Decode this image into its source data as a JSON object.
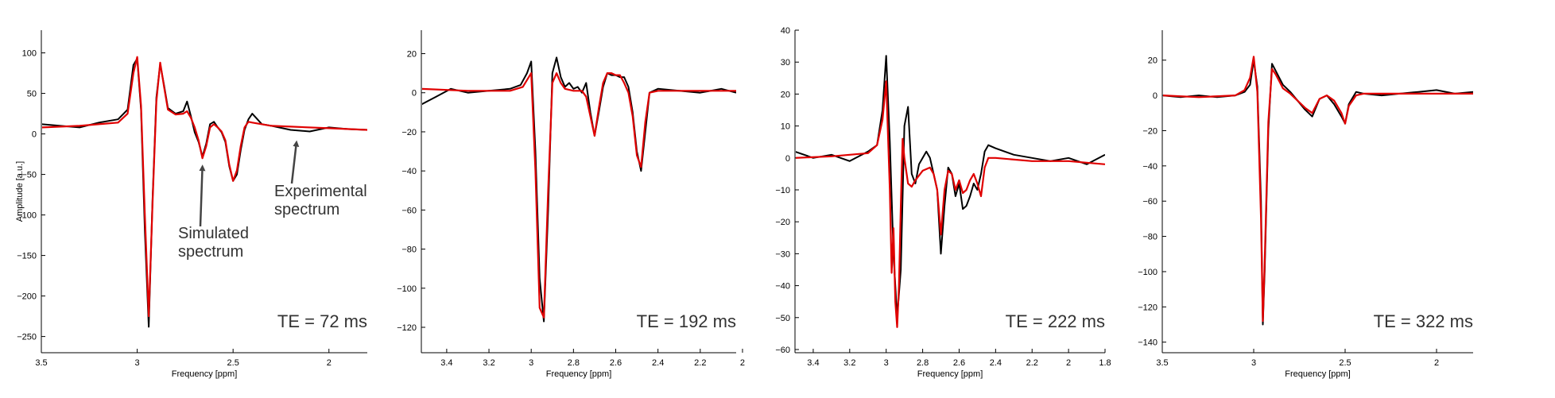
{
  "chart_data": [
    {
      "type": "line",
      "label": "TE = 72 ms",
      "xlabel": "Frequency [ppm]",
      "ylabel": "Amplitude [a.u.]",
      "xlim": [
        3.5,
        1.8
      ],
      "ylim": [
        -270,
        128
      ],
      "xticks": [
        3.5,
        3,
        2.5,
        2
      ],
      "xticklabels": [
        "3.5",
        "3",
        "2.5",
        "2"
      ],
      "yticks": [
        100,
        50,
        0,
        -50,
        -100,
        -150,
        -200,
        -250
      ],
      "yticklabels": [
        "100",
        "50",
        "0",
        "−50",
        "−100",
        "−150",
        "−200",
        "−250"
      ],
      "annotations": [
        {
          "text": [
            "Simulated",
            "spectrum"
          ],
          "point": [
            2.66,
            -30
          ]
        },
        {
          "text": [
            "Experimental",
            "spectrum"
          ],
          "point": [
            2.17,
            0
          ]
        }
      ],
      "series": [
        {
          "name": "Experimental spectrum",
          "x": [
            3.5,
            3.4,
            3.3,
            3.2,
            3.1,
            3.05,
            3.02,
            3.0,
            2.98,
            2.96,
            2.94,
            2.92,
            2.9,
            2.88,
            2.86,
            2.84,
            2.8,
            2.76,
            2.74,
            2.72,
            2.7,
            2.68,
            2.66,
            2.64,
            2.62,
            2.6,
            2.58,
            2.56,
            2.54,
            2.52,
            2.5,
            2.48,
            2.46,
            2.44,
            2.42,
            2.4,
            2.35,
            2.3,
            2.2,
            2.1,
            2.0,
            1.9,
            1.8
          ],
          "y": [
            12,
            10,
            8,
            14,
            18,
            30,
            85,
            93,
            30,
            -120,
            -238,
            -80,
            45,
            86,
            60,
            32,
            25,
            28,
            40,
            22,
            2,
            -10,
            -28,
            -12,
            12,
            15,
            8,
            2,
            -10,
            -40,
            -58,
            -50,
            -20,
            5,
            18,
            25,
            12,
            10,
            5,
            3,
            8,
            6,
            5
          ]
        },
        {
          "name": "Simulated spectrum",
          "x": [
            3.5,
            3.3,
            3.1,
            3.05,
            3.02,
            3.0,
            2.98,
            2.96,
            2.94,
            2.92,
            2.9,
            2.88,
            2.86,
            2.84,
            2.8,
            2.76,
            2.74,
            2.72,
            2.7,
            2.68,
            2.66,
            2.64,
            2.62,
            2.6,
            2.58,
            2.56,
            2.54,
            2.52,
            2.5,
            2.48,
            2.46,
            2.44,
            2.42,
            2.4,
            2.3,
            2.2,
            2.0,
            1.8
          ],
          "y": [
            8,
            10,
            14,
            25,
            75,
            95,
            35,
            -100,
            -225,
            -85,
            40,
            88,
            58,
            30,
            24,
            25,
            28,
            20,
            8,
            -8,
            -30,
            -15,
            8,
            12,
            8,
            3,
            -8,
            -38,
            -58,
            -45,
            -15,
            8,
            15,
            14,
            10,
            9,
            7,
            5
          ]
        }
      ]
    },
    {
      "type": "line",
      "label": "TE = 192 ms",
      "xlabel": "Frequency [ppm]",
      "ylabel": "",
      "xlim": [
        3.52,
        2.03
      ],
      "ylim": [
        -133,
        32
      ],
      "xticks": [
        3.4,
        3.2,
        3.0,
        2.8,
        2.6,
        2.4,
        2.2,
        2.0
      ],
      "xticklabels": [
        "3.4",
        "3.2",
        "3",
        "2.8",
        "2.6",
        "2.4",
        "2.2",
        "2"
      ],
      "yticks": [
        20,
        0,
        -20,
        -40,
        -60,
        -80,
        -100,
        -120
      ],
      "yticklabels": [
        "20",
        "0",
        "−20",
        "−40",
        "−60",
        "−80",
        "−100",
        "−120"
      ],
      "series": [
        {
          "name": "Experimental spectrum",
          "x": [
            3.52,
            3.45,
            3.38,
            3.3,
            3.2,
            3.1,
            3.05,
            3.02,
            3.0,
            2.98,
            2.96,
            2.94,
            2.92,
            2.9,
            2.88,
            2.86,
            2.84,
            2.82,
            2.8,
            2.78,
            2.76,
            2.74,
            2.72,
            2.7,
            2.68,
            2.66,
            2.64,
            2.62,
            2.6,
            2.58,
            2.56,
            2.54,
            2.52,
            2.5,
            2.48,
            2.46,
            2.44,
            2.4,
            2.3,
            2.2,
            2.1,
            2.03
          ],
          "y": [
            -6,
            -2,
            2,
            0,
            1,
            2,
            4,
            10,
            16,
            -30,
            -95,
            -117,
            -60,
            10,
            18,
            8,
            3,
            5,
            2,
            3,
            0,
            5,
            -10,
            -22,
            -10,
            3,
            10,
            9,
            9,
            8,
            8,
            3,
            -10,
            -30,
            -40,
            -20,
            0,
            2,
            1,
            0,
            2,
            0
          ]
        },
        {
          "name": "Simulated spectrum",
          "x": [
            3.52,
            3.3,
            3.1,
            3.04,
            3.0,
            2.98,
            2.96,
            2.94,
            2.92,
            2.9,
            2.88,
            2.86,
            2.84,
            2.8,
            2.76,
            2.74,
            2.72,
            2.7,
            2.68,
            2.66,
            2.64,
            2.62,
            2.6,
            2.58,
            2.56,
            2.54,
            2.52,
            2.5,
            2.48,
            2.46,
            2.44,
            2.4,
            2.2,
            2.03
          ],
          "y": [
            2,
            1,
            1,
            3,
            10,
            -40,
            -110,
            -115,
            -50,
            5,
            10,
            5,
            2,
            1,
            1,
            -2,
            -12,
            -22,
            -8,
            5,
            10,
            10,
            9,
            9,
            5,
            0,
            -12,
            -32,
            -38,
            -15,
            0,
            1,
            1,
            1
          ]
        }
      ]
    },
    {
      "type": "line",
      "label": "TE = 222 ms",
      "xlabel": "Frequency [ppm]",
      "ylabel": "",
      "xlim": [
        3.5,
        1.8
      ],
      "ylim": [
        -61,
        40
      ],
      "xticks": [
        3.4,
        3.2,
        3.0,
        2.8,
        2.6,
        2.4,
        2.2,
        2.0,
        1.8
      ],
      "xticklabels": [
        "3.4",
        "3.2",
        "3",
        "2.8",
        "2.6",
        "2.4",
        "2.2",
        "2",
        "1.8"
      ],
      "yticks": [
        40,
        30,
        20,
        10,
        0,
        -10,
        -20,
        -30,
        -40,
        -50,
        -60
      ],
      "yticklabels": [
        "40",
        "30",
        "20",
        "10",
        "0",
        "−10",
        "−20",
        "−30",
        "−40",
        "−50",
        "−60"
      ],
      "series": [
        {
          "name": "Experimental spectrum",
          "x": [
            3.5,
            3.4,
            3.3,
            3.2,
            3.1,
            3.05,
            3.02,
            3.0,
            2.98,
            2.96,
            2.94,
            2.92,
            2.9,
            2.88,
            2.86,
            2.84,
            2.82,
            2.8,
            2.78,
            2.76,
            2.74,
            2.72,
            2.7,
            2.68,
            2.66,
            2.64,
            2.62,
            2.6,
            2.58,
            2.56,
            2.54,
            2.52,
            2.5,
            2.48,
            2.46,
            2.44,
            2.4,
            2.3,
            2.2,
            2.1,
            2.0,
            1.9,
            1.8
          ],
          "y": [
            2,
            0,
            1,
            -1,
            2,
            4,
            15,
            32,
            5,
            -30,
            -50,
            -35,
            10,
            16,
            -5,
            -8,
            -2,
            0,
            2,
            0,
            -5,
            -10,
            -30,
            -15,
            -3,
            -5,
            -12,
            -8,
            -16,
            -15,
            -12,
            -8,
            -10,
            -5,
            2,
            4,
            3,
            1,
            0,
            -1,
            0,
            -2,
            1
          ]
        },
        {
          "name": "Simulated spectrum",
          "x": [
            3.5,
            3.3,
            3.1,
            3.05,
            3.02,
            3.0,
            2.98,
            2.97,
            2.96,
            2.95,
            2.94,
            2.93,
            2.92,
            2.91,
            2.9,
            2.88,
            2.86,
            2.84,
            2.8,
            2.76,
            2.74,
            2.72,
            2.7,
            2.68,
            2.66,
            2.64,
            2.62,
            2.6,
            2.58,
            2.56,
            2.54,
            2.52,
            2.5,
            2.48,
            2.46,
            2.44,
            2.4,
            2.2,
            2.0,
            1.8
          ],
          "y": [
            0,
            0.5,
            1.5,
            4,
            12,
            24,
            -10,
            -36,
            -22,
            -45,
            -53,
            -40,
            -15,
            6,
            0,
            -8,
            -9,
            -7,
            -4,
            -3,
            -5,
            -10,
            -24,
            -10,
            -4,
            -5,
            -10,
            -7,
            -11,
            -10,
            -7,
            -5,
            -8,
            -12,
            -3,
            0,
            0,
            -1,
            -1,
            -2
          ]
        }
      ]
    },
    {
      "type": "line",
      "label": "TE = 322 ms",
      "xlabel": "Frequency [ppm]",
      "ylabel": "",
      "xlim": [
        3.5,
        1.8
      ],
      "ylim": [
        -146,
        37
      ],
      "xticks": [
        3.5,
        3,
        2.5,
        2
      ],
      "xticklabels": [
        "3.5",
        "3",
        "2.5",
        "2"
      ],
      "yticks": [
        20,
        0,
        -20,
        -40,
        -60,
        -80,
        -100,
        -120,
        -140
      ],
      "yticklabels": [
        "20",
        "0",
        "−20",
        "−40",
        "−60",
        "−80",
        "−100",
        "−120",
        "−140"
      ],
      "series": [
        {
          "name": "Experimental spectrum",
          "x": [
            3.5,
            3.4,
            3.3,
            3.2,
            3.1,
            3.05,
            3.02,
            3.0,
            2.98,
            2.96,
            2.95,
            2.94,
            2.92,
            2.9,
            2.88,
            2.86,
            2.84,
            2.82,
            2.8,
            2.76,
            2.72,
            2.68,
            2.64,
            2.6,
            2.56,
            2.52,
            2.5,
            2.48,
            2.44,
            2.4,
            2.3,
            2.2,
            2.1,
            2.0,
            1.9,
            1.8
          ],
          "y": [
            0,
            -1,
            0,
            -1,
            0,
            2,
            6,
            20,
            5,
            -60,
            -130,
            -100,
            -20,
            18,
            14,
            10,
            6,
            4,
            2,
            -3,
            -8,
            -12,
            -2,
            0,
            -5,
            -12,
            -16,
            -5,
            2,
            1,
            0,
            1,
            2,
            3,
            1,
            2
          ]
        },
        {
          "name": "Simulated spectrum",
          "x": [
            3.5,
            3.3,
            3.1,
            3.05,
            3.02,
            3.0,
            2.98,
            2.96,
            2.95,
            2.94,
            2.92,
            2.9,
            2.88,
            2.86,
            2.84,
            2.8,
            2.76,
            2.72,
            2.68,
            2.64,
            2.6,
            2.56,
            2.52,
            2.5,
            2.48,
            2.44,
            2.4,
            2.2,
            2.0,
            1.8
          ],
          "y": [
            0,
            -1,
            0,
            3,
            10,
            22,
            2,
            -70,
            -128,
            -95,
            -15,
            15,
            12,
            8,
            4,
            1,
            -3,
            -7,
            -10,
            -2,
            0,
            -3,
            -10,
            -16,
            -6,
            0,
            1,
            1,
            1,
            1
          ]
        }
      ]
    }
  ]
}
